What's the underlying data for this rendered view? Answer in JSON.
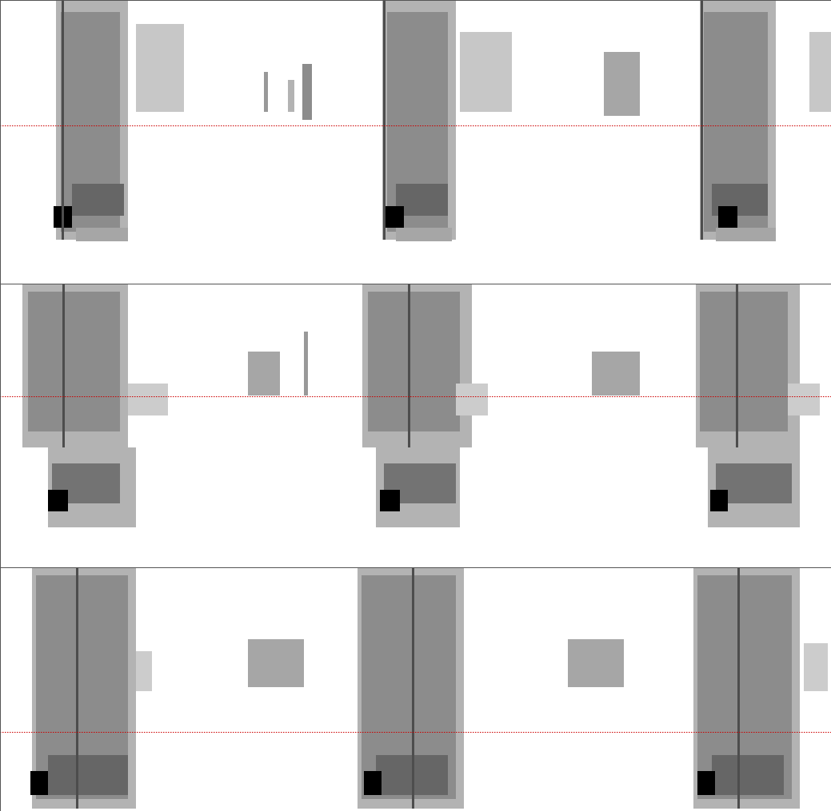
{
  "chart_data": [
    {
      "type": "spectrogram",
      "tick_labels": false,
      "xlim": [
        0,
        1039
      ],
      "ylim": [
        0,
        355
      ],
      "intensity_range": [
        0,
        1
      ],
      "reference_line": {
        "y": 198,
        "color": "#cc0000",
        "line_style": "dotted"
      },
      "regions": [
        {
          "x1": 70,
          "x2": 160,
          "y1": 55,
          "y2": 355,
          "level": 0.3
        },
        {
          "x1": 76,
          "x2": 150,
          "y1": 65,
          "y2": 340,
          "level": 0.45
        },
        {
          "x1": 170,
          "x2": 230,
          "y1": 215,
          "y2": 325,
          "level": 0.22
        },
        {
          "x1": 90,
          "x2": 155,
          "y1": 85,
          "y2": 125,
          "level": 0.6
        },
        {
          "x1": 95,
          "x2": 160,
          "y1": 53,
          "y2": 70,
          "level": 0.35
        },
        {
          "x1": 67,
          "x2": 90,
          "y1": 70,
          "y2": 97,
          "level": 1
        },
        {
          "x1": 77,
          "x2": 80,
          "y1": 55,
          "y2": 355,
          "level": 0.7
        },
        {
          "x1": 330,
          "x2": 335,
          "y1": 215,
          "y2": 265,
          "level": 0.4
        },
        {
          "x1": 360,
          "x2": 368,
          "y1": 215,
          "y2": 255,
          "level": 0.3
        },
        {
          "x1": 378,
          "x2": 390,
          "y1": 205,
          "y2": 275,
          "level": 0.45
        },
        {
          "x1": 478,
          "x2": 570,
          "y1": 55,
          "y2": 355,
          "level": 0.3
        },
        {
          "x1": 484,
          "x2": 560,
          "y1": 65,
          "y2": 340,
          "level": 0.45
        },
        {
          "x1": 575,
          "x2": 640,
          "y1": 215,
          "y2": 315,
          "level": 0.22
        },
        {
          "x1": 495,
          "x2": 560,
          "y1": 85,
          "y2": 125,
          "level": 0.6
        },
        {
          "x1": 495,
          "x2": 565,
          "y1": 53,
          "y2": 70,
          "level": 0.35
        },
        {
          "x1": 482,
          "x2": 505,
          "y1": 70,
          "y2": 97,
          "level": 1
        },
        {
          "x1": 479,
          "x2": 482,
          "y1": 55,
          "y2": 355,
          "level": 0.7
        },
        {
          "x1": 755,
          "x2": 800,
          "y1": 210,
          "y2": 290,
          "level": 0.35
        },
        {
          "x1": 875,
          "x2": 970,
          "y1": 55,
          "y2": 355,
          "level": 0.3
        },
        {
          "x1": 880,
          "x2": 960,
          "y1": 65,
          "y2": 340,
          "level": 0.45
        },
        {
          "x1": 1012,
          "x2": 1039,
          "y1": 215,
          "y2": 315,
          "level": 0.22
        },
        {
          "x1": 890,
          "x2": 960,
          "y1": 85,
          "y2": 125,
          "level": 0.6
        },
        {
          "x1": 895,
          "x2": 970,
          "y1": 53,
          "y2": 70,
          "level": 0.35
        },
        {
          "x1": 898,
          "x2": 922,
          "y1": 70,
          "y2": 97,
          "level": 1
        },
        {
          "x1": 876,
          "x2": 879,
          "y1": 55,
          "y2": 355,
          "level": 0.7
        }
      ]
    },
    {
      "type": "spectrogram",
      "tick_labels": false,
      "xlim": [
        0,
        1039
      ],
      "ylim": [
        0,
        355
      ],
      "intensity_range": [
        0,
        1
      ],
      "reference_line": {
        "y": 214,
        "color": "#cc0000",
        "line_style": "dotted"
      },
      "regions": [
        {
          "x1": 28,
          "x2": 160,
          "y1": 150,
          "y2": 355,
          "level": 0.3
        },
        {
          "x1": 60,
          "x2": 170,
          "y1": 50,
          "y2": 150,
          "level": 0.3
        },
        {
          "x1": 35,
          "x2": 150,
          "y1": 170,
          "y2": 345,
          "level": 0.45
        },
        {
          "x1": 65,
          "x2": 150,
          "y1": 80,
          "y2": 130,
          "level": 0.55
        },
        {
          "x1": 60,
          "x2": 85,
          "y1": 70,
          "y2": 97,
          "level": 1
        },
        {
          "x1": 78,
          "x2": 81,
          "y1": 150,
          "y2": 355,
          "level": 0.7
        },
        {
          "x1": 160,
          "x2": 210,
          "y1": 190,
          "y2": 230,
          "level": 0.2
        },
        {
          "x1": 310,
          "x2": 350,
          "y1": 215,
          "y2": 270,
          "level": 0.35
        },
        {
          "x1": 380,
          "x2": 385,
          "y1": 215,
          "y2": 295,
          "level": 0.4
        },
        {
          "x1": 453,
          "x2": 590,
          "y1": 150,
          "y2": 355,
          "level": 0.3
        },
        {
          "x1": 470,
          "x2": 575,
          "y1": 50,
          "y2": 150,
          "level": 0.3
        },
        {
          "x1": 460,
          "x2": 575,
          "y1": 170,
          "y2": 345,
          "level": 0.45
        },
        {
          "x1": 480,
          "x2": 570,
          "y1": 80,
          "y2": 130,
          "level": 0.55
        },
        {
          "x1": 475,
          "x2": 500,
          "y1": 70,
          "y2": 97,
          "level": 1
        },
        {
          "x1": 510,
          "x2": 513,
          "y1": 150,
          "y2": 355,
          "level": 0.7
        },
        {
          "x1": 570,
          "x2": 610,
          "y1": 190,
          "y2": 230,
          "level": 0.2
        },
        {
          "x1": 740,
          "x2": 800,
          "y1": 215,
          "y2": 270,
          "level": 0.35
        },
        {
          "x1": 870,
          "x2": 1000,
          "y1": 150,
          "y2": 355,
          "level": 0.3
        },
        {
          "x1": 885,
          "x2": 1000,
          "y1": 50,
          "y2": 150,
          "level": 0.3
        },
        {
          "x1": 875,
          "x2": 985,
          "y1": 170,
          "y2": 345,
          "level": 0.45
        },
        {
          "x1": 895,
          "x2": 990,
          "y1": 80,
          "y2": 130,
          "level": 0.55
        },
        {
          "x1": 888,
          "x2": 910,
          "y1": 70,
          "y2": 97,
          "level": 1
        },
        {
          "x1": 920,
          "x2": 923,
          "y1": 150,
          "y2": 355,
          "level": 0.7
        },
        {
          "x1": 985,
          "x2": 1025,
          "y1": 190,
          "y2": 230,
          "level": 0.2
        }
      ]
    },
    {
      "type": "spectrogram",
      "tick_labels": false,
      "xlim": [
        0,
        1039
      ],
      "ylim": [
        0,
        305
      ],
      "intensity_range": [
        0,
        1
      ],
      "reference_line": {
        "y": 99,
        "color": "#cc0000",
        "line_style": "dotted"
      },
      "regions": [
        {
          "x1": 40,
          "x2": 170,
          "y1": 3,
          "y2": 305,
          "level": 0.3
        },
        {
          "x1": 45,
          "x2": 160,
          "y1": 15,
          "y2": 295,
          "level": 0.45
        },
        {
          "x1": 60,
          "x2": 160,
          "y1": 20,
          "y2": 70,
          "level": 0.6
        },
        {
          "x1": 38,
          "x2": 60,
          "y1": 20,
          "y2": 50,
          "level": 1
        },
        {
          "x1": 95,
          "x2": 98,
          "y1": 3,
          "y2": 305,
          "level": 0.7
        },
        {
          "x1": 170,
          "x2": 190,
          "y1": 150,
          "y2": 200,
          "level": 0.2
        },
        {
          "x1": 310,
          "x2": 380,
          "y1": 155,
          "y2": 215,
          "level": 0.35
        },
        {
          "x1": 447,
          "x2": 580,
          "y1": 3,
          "y2": 305,
          "level": 0.3
        },
        {
          "x1": 452,
          "x2": 570,
          "y1": 15,
          "y2": 295,
          "level": 0.45
        },
        {
          "x1": 470,
          "x2": 560,
          "y1": 20,
          "y2": 70,
          "level": 0.6
        },
        {
          "x1": 455,
          "x2": 477,
          "y1": 20,
          "y2": 50,
          "level": 1
        },
        {
          "x1": 515,
          "x2": 518,
          "y1": 3,
          "y2": 305,
          "level": 0.7
        },
        {
          "x1": 710,
          "x2": 780,
          "y1": 155,
          "y2": 215,
          "level": 0.35
        },
        {
          "x1": 867,
          "x2": 1000,
          "y1": 3,
          "y2": 305,
          "level": 0.3
        },
        {
          "x1": 872,
          "x2": 990,
          "y1": 15,
          "y2": 295,
          "level": 0.45
        },
        {
          "x1": 890,
          "x2": 980,
          "y1": 20,
          "y2": 70,
          "level": 0.6
        },
        {
          "x1": 872,
          "x2": 894,
          "y1": 20,
          "y2": 50,
          "level": 1
        },
        {
          "x1": 922,
          "x2": 925,
          "y1": 3,
          "y2": 305,
          "level": 0.7
        },
        {
          "x1": 1005,
          "x2": 1035,
          "y1": 150,
          "y2": 210,
          "level": 0.2
        }
      ]
    }
  ]
}
